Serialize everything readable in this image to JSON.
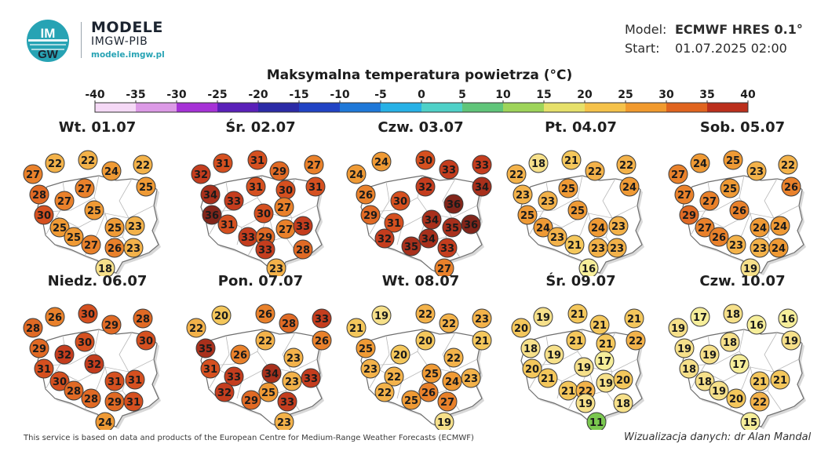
{
  "logo": {
    "mark_top": "IM",
    "mark_bottom": "GW",
    "title": "MODELE",
    "subtitle": "IMGW-PIB",
    "url": "modele.imgw.pl",
    "colors": {
      "circle": "#27a3b4",
      "text": "#1c2430"
    }
  },
  "meta": {
    "model_label": "Model:",
    "model_value": "ECMWF HRES 0.1°",
    "start_label": "Start:",
    "start_value": "01.07.2025 02:00"
  },
  "title": "Maksymalna temperatura powietrza (°C)",
  "scale": {
    "ticks": [
      "-40",
      "-35",
      "-30",
      "-25",
      "-20",
      "-15",
      "-10",
      "-5",
      "0",
      "5",
      "10",
      "15",
      "20",
      "25",
      "30",
      "35",
      "40"
    ],
    "colors": [
      "#f5d9f6",
      "#dc9ae6",
      "#a632d6",
      "#5a20b8",
      "#2b2aa6",
      "#2143c4",
      "#1f78d8",
      "#27b1e6",
      "#4fd1c8",
      "#60c57a",
      "#9ed45a",
      "#e6e06a",
      "#f5c24a",
      "#f19a2e",
      "#e0641f",
      "#bb2f1c",
      "#6e1a12"
    ]
  },
  "days": [
    {
      "title": "Wt. 01.07",
      "values": [
        27,
        22,
        22,
        24,
        22,
        25,
        27,
        28,
        27,
        25,
        30,
        25,
        25,
        27,
        25,
        23,
        26,
        23,
        18
      ]
    },
    {
      "title": "Śr. 02.07",
      "values": [
        32,
        31,
        31,
        29,
        27,
        31,
        34,
        33,
        31,
        30,
        36,
        31,
        30,
        27,
        33,
        29,
        27,
        33,
        33,
        28,
        23
      ]
    },
    {
      "title": "Czw. 03.07",
      "values": [
        24,
        24,
        30,
        33,
        33,
        34,
        26,
        32,
        30,
        36,
        29,
        34,
        31,
        35,
        32,
        34,
        36,
        35,
        33,
        27
      ]
    },
    {
      "title": "Pt. 04.07",
      "values": [
        22,
        18,
        21,
        22,
        22,
        24,
        25,
        23,
        23,
        25,
        25,
        24,
        23,
        21,
        24,
        23,
        23,
        23,
        16
      ]
    },
    {
      "title": "Sob. 05.07",
      "values": [
        27,
        24,
        25,
        23,
        22,
        26,
        25,
        27,
        27,
        26,
        29,
        27,
        26,
        23,
        24,
        24,
        23,
        24,
        19
      ]
    },
    {
      "title": "Niedz. 06.07",
      "values": [
        28,
        26,
        30,
        29,
        28,
        30,
        30,
        29,
        32,
        32,
        31,
        30,
        28,
        28,
        31,
        31,
        29,
        31,
        24
      ]
    },
    {
      "title": "Pon. 07.07",
      "values": [
        22,
        20,
        26,
        28,
        33,
        26,
        35,
        22,
        26,
        23,
        31,
        34,
        33,
        23,
        32,
        25,
        33,
        29,
        33,
        23
      ]
    },
    {
      "title": "Wt. 08.07",
      "values": [
        21,
        19,
        22,
        22,
        23,
        21,
        25,
        20,
        20,
        22,
        23,
        25,
        22,
        24,
        22,
        26,
        23,
        25,
        27,
        19
      ]
    },
    {
      "title": "Śr. 09.07",
      "values": [
        20,
        19,
        21,
        21,
        21,
        22,
        18,
        19,
        21,
        21,
        20,
        21,
        19,
        17,
        21,
        22,
        19,
        20,
        19,
        18,
        11
      ]
    },
    {
      "title": "Czw. 10.07",
      "values": [
        19,
        17,
        18,
        16,
        16,
        19,
        18,
        19,
        19,
        17,
        18,
        18,
        19,
        20,
        21,
        21,
        22,
        15
      ]
    }
  ],
  "footer": {
    "left": "This service is based on data and products of the European Centre for Medium-Range Weather Forecasts (ECMWF)",
    "right": "Wizualizacja danych: dr Alan Mandal"
  }
}
